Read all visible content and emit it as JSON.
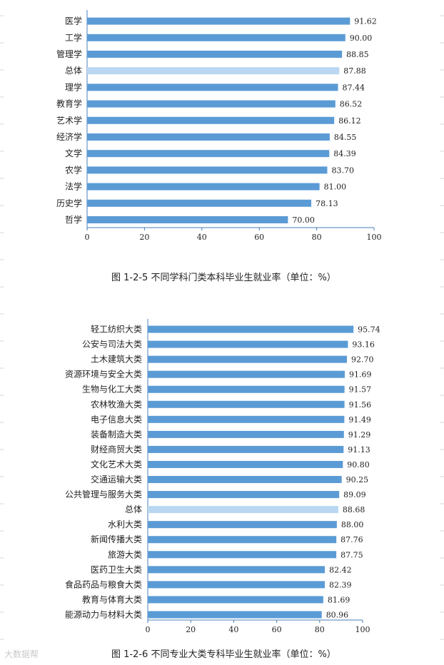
{
  "chart_data": [
    {
      "type": "bar",
      "orientation": "horizontal",
      "categories": [
        "医学",
        "工学",
        "管理学",
        "总体",
        "理学",
        "教育学",
        "艺术学",
        "经济学",
        "文学",
        "农学",
        "法学",
        "历史学",
        "哲学"
      ],
      "values": [
        91.62,
        90.0,
        88.85,
        87.88,
        87.44,
        86.52,
        86.12,
        84.55,
        84.39,
        83.7,
        81.0,
        78.13,
        70.0
      ],
      "value_labels": [
        "91.62",
        "90.00",
        "88.85",
        "87.88",
        "87.44",
        "86.52",
        "86.12",
        "84.55",
        "84.39",
        "83.70",
        "81.00",
        "78.13",
        "70.00"
      ],
      "highlight": [
        "总体"
      ],
      "xlim": [
        0,
        100
      ],
      "xticks": [
        "0",
        "20",
        "40",
        "60",
        "80",
        "100"
      ],
      "caption": "图 1-2-5  不同学科门类本科毕业生就业率（单位：%）",
      "colors": {
        "bar": "#5b9bd5",
        "highlight": "#b9d7f0"
      }
    },
    {
      "type": "bar",
      "orientation": "horizontal",
      "categories": [
        "轻工纺织大类",
        "公安与司法大类",
        "土木建筑大类",
        "资源环境与安全大类",
        "生物与化工大类",
        "农林牧渔大类",
        "电子信息大类",
        "装备制造大类",
        "财经商贸大类",
        "文化艺术大类",
        "交通运输大类",
        "公共管理与服务大类",
        "总体",
        "水利大类",
        "新闻传播大类",
        "旅游大类",
        "医药卫生大类",
        "食品药品与粮食大类",
        "教育与体育大类",
        "能源动力与材料大类"
      ],
      "values": [
        95.74,
        93.16,
        92.7,
        91.69,
        91.57,
        91.56,
        91.49,
        91.29,
        91.13,
        90.8,
        90.25,
        89.09,
        88.68,
        88.0,
        87.76,
        87.75,
        82.42,
        82.39,
        81.69,
        80.96
      ],
      "value_labels": [
        "95.74",
        "93.16",
        "92.70",
        "91.69",
        "91.57",
        "91.56",
        "91.49",
        "91.29",
        "91.13",
        "90.80",
        "90.25",
        "89.09",
        "88.68",
        "88.00",
        "87.76",
        "87.75",
        "82.42",
        "82.39",
        "81.69",
        "80.96"
      ],
      "highlight": [
        "总体"
      ],
      "xlim": [
        0,
        100
      ],
      "xticks": [
        "0",
        "20",
        "40",
        "60",
        "80",
        "100"
      ],
      "caption": "图 1-2-6  不同专业大类专科毕业生就业率（单位：%）",
      "colors": {
        "bar": "#5b9bd5",
        "highlight": "#b9d7f0"
      }
    }
  ],
  "watermark": "大数据帮"
}
